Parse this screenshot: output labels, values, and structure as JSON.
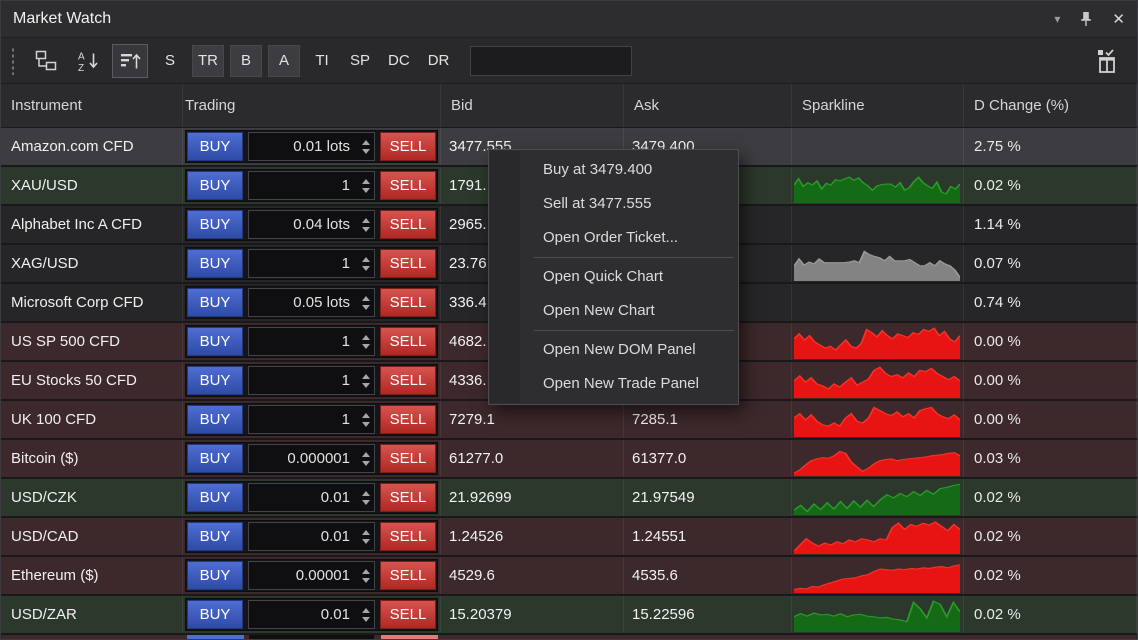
{
  "window": {
    "title": "Market Watch"
  },
  "titlebar": {
    "icons": [
      "chevron-down",
      "pin",
      "close"
    ]
  },
  "toolbar": {
    "icons": [
      "drag-grip",
      "group-by",
      "sort-alphabetical",
      "sort-bars-ascending",
      "column-chooser"
    ],
    "filter_buttons": [
      {
        "label": "S",
        "active": false
      },
      {
        "label": "TR",
        "active": true
      },
      {
        "label": "B",
        "active": true
      },
      {
        "label": "A",
        "active": true
      },
      {
        "label": "TI",
        "active": false
      },
      {
        "label": "SP",
        "active": false
      },
      {
        "label": "DC",
        "active": false
      },
      {
        "label": "DR",
        "active": false
      }
    ],
    "search": {
      "value": "",
      "placeholder": ""
    }
  },
  "table": {
    "columns": [
      "Instrument",
      "Trading",
      "Bid",
      "Ask",
      "Sparkline",
      "D Change (%)"
    ],
    "buy_label": "BUY",
    "sell_label": "SELL",
    "rows": [
      {
        "instrument": "Amazon.com CFD",
        "qty": "0.01 lots",
        "bid": "3477.555",
        "ask": "3479.400",
        "change": "2.75 %",
        "tone": "selected",
        "spark_color": null,
        "spark_points": []
      },
      {
        "instrument": "XAU/USD",
        "qty": "1",
        "bid": "1791.",
        "ask": "",
        "change": "0.02 %",
        "tone": "green",
        "spark_color": "green",
        "spark_points": [
          55,
          75,
          50,
          62,
          55,
          68,
          42,
          60,
          55,
          72,
          68,
          75,
          80,
          70,
          78,
          62,
          52,
          38,
          52,
          56,
          58,
          58,
          48,
          62,
          38,
          46,
          66,
          80,
          62,
          52,
          44,
          64,
          32,
          26,
          50,
          42,
          58
        ]
      },
      {
        "instrument": "Alphabet Inc A CFD",
        "qty": "0.04 lots",
        "bid": "2965.",
        "ask": "",
        "change": "1.14 %",
        "tone": "neutral",
        "spark_color": null,
        "spark_points": []
      },
      {
        "instrument": "XAG/USD",
        "qty": "1",
        "bid": "23.76",
        "ask": "",
        "change": "0.07 %",
        "tone": "neutral",
        "spark_color": "gray",
        "spark_points": [
          45,
          68,
          48,
          58,
          52,
          68,
          56,
          56,
          56,
          56,
          56,
          58,
          62,
          56,
          92,
          82,
          76,
          72,
          62,
          76,
          62,
          62,
          62,
          66,
          56,
          46,
          46,
          56,
          46,
          62,
          52,
          46,
          32,
          8
        ]
      },
      {
        "instrument": "Microsoft Corp CFD",
        "qty": "0.05 lots",
        "bid": "336.4",
        "ask": "",
        "change": "0.74 %",
        "tone": "neutral",
        "spark_color": null,
        "spark_points": []
      },
      {
        "instrument": "US SP 500 CFD",
        "qty": "1",
        "bid": "4682.",
        "ask": "",
        "change": "0.00 %",
        "tone": "red",
        "spark_color": "red",
        "spark_points": [
          62,
          78,
          58,
          72,
          52,
          42,
          32,
          38,
          26,
          42,
          58,
          38,
          32,
          48,
          92,
          82,
          68,
          88,
          72,
          62,
          78,
          72,
          66,
          82,
          76,
          92,
          86,
          96,
          72,
          86,
          62,
          52,
          72
        ]
      },
      {
        "instrument": "EU Stocks 50 CFD",
        "qty": "1",
        "bid": "4336.",
        "ask": "",
        "change": "0.00 %",
        "tone": "red",
        "spark_color": "red",
        "spark_points": [
          52,
          68,
          48,
          62,
          42,
          36,
          26,
          42,
          32,
          48,
          62,
          38,
          48,
          58,
          86,
          96,
          76,
          66,
          72,
          62,
          78,
          66,
          86,
          82,
          92,
          76,
          66,
          56,
          66,
          52
        ]
      },
      {
        "instrument": "UK 100 CFD",
        "qty": "1",
        "bid": "7279.1",
        "ask": "7285.1",
        "change": "0.00 %",
        "tone": "red",
        "spark_color": "red",
        "spark_points": [
          58,
          72,
          52,
          68,
          48,
          36,
          32,
          42,
          32,
          58,
          72,
          48,
          42,
          58,
          92,
          82,
          72,
          66,
          78,
          62,
          72,
          58,
          82,
          88,
          92,
          72,
          62,
          56,
          68,
          52
        ]
      },
      {
        "instrument": "Bitcoin ($)",
        "qty": "0.000001",
        "bid": "61277.0",
        "ask": "61377.0",
        "change": "0.03 %",
        "tone": "red",
        "spark_color": "red",
        "spark_points": [
          6,
          16,
          32,
          46,
          52,
          56,
          54,
          62,
          76,
          70,
          42,
          26,
          12,
          22,
          36,
          46,
          50,
          52,
          46,
          50,
          52,
          54,
          56,
          58,
          62,
          64,
          66,
          70,
          72,
          62
        ]
      },
      {
        "instrument": "USD/CZK",
        "qty": "0.01",
        "bid": "21.92699",
        "ask": "21.97549",
        "change": "0.02 %",
        "tone": "green",
        "spark_color": "green",
        "spark_points": [
          12,
          28,
          8,
          32,
          14,
          36,
          16,
          40,
          18,
          42,
          22,
          44,
          24,
          46,
          62,
          52,
          66,
          56,
          72,
          60,
          76,
          64,
          82,
          86,
          92,
          96
        ]
      },
      {
        "instrument": "USD/CAD",
        "qty": "0.01",
        "bid": "1.24526",
        "ask": "1.24551",
        "change": "0.02 %",
        "tone": "red",
        "spark_color": "red",
        "spark_points": [
          6,
          26,
          46,
          32,
          22,
          32,
          26,
          36,
          30,
          42,
          36,
          46,
          42,
          36,
          46,
          42,
          82,
          96,
          76,
          92,
          86,
          96,
          90,
          100,
          86,
          72,
          92,
          76
        ]
      },
      {
        "instrument": "Ethereum ($)",
        "qty": "0.00001",
        "bid": "4529.6",
        "ask": "4535.6",
        "change": "0.02 %",
        "tone": "red",
        "spark_color": "red",
        "spark_points": [
          8,
          12,
          10,
          18,
          16,
          24,
          30,
          36,
          42,
          44,
          46,
          52,
          56,
          66,
          74,
          72,
          70,
          74,
          72,
          76,
          74,
          78,
          76,
          80,
          82,
          78,
          84,
          88
        ]
      },
      {
        "instrument": "USD/ZAR",
        "qty": "0.01",
        "bid": "15.20379",
        "ask": "15.22596",
        "change": "0.02 %",
        "tone": "green",
        "spark_color": "green",
        "spark_points": [
          46,
          56,
          48,
          58,
          52,
          54,
          48,
          56,
          46,
          52,
          54,
          48,
          46,
          42,
          44,
          38,
          36,
          30,
          92,
          72,
          42,
          96,
          86,
          46,
          92,
          62
        ]
      }
    ],
    "partial_next_row": {
      "tone": "red"
    }
  },
  "context_menu": {
    "items": [
      {
        "label": "Buy at 3479.400"
      },
      {
        "label": "Sell at 3477.555"
      },
      {
        "label": "Open Order Ticket..."
      },
      {
        "separator": true
      },
      {
        "label": "Open Quick Chart"
      },
      {
        "label": "Open New Chart"
      },
      {
        "separator": true
      },
      {
        "label": "Open New DOM Panel"
      },
      {
        "label": "Open New Trade Panel"
      }
    ]
  },
  "colors": {
    "buy_blue": "#3a58b8",
    "sell_red": "#c23530",
    "row_green": "#2c382c",
    "row_red": "#3d282b",
    "row_selected": "#3d3d41",
    "spark": {
      "green": {
        "fill": "#156b15",
        "stroke": "#2a9a2a"
      },
      "red": {
        "fill": "#e81414",
        "stroke": "#f43428"
      },
      "gray": {
        "fill": "#838383",
        "stroke": "#999999"
      }
    }
  }
}
